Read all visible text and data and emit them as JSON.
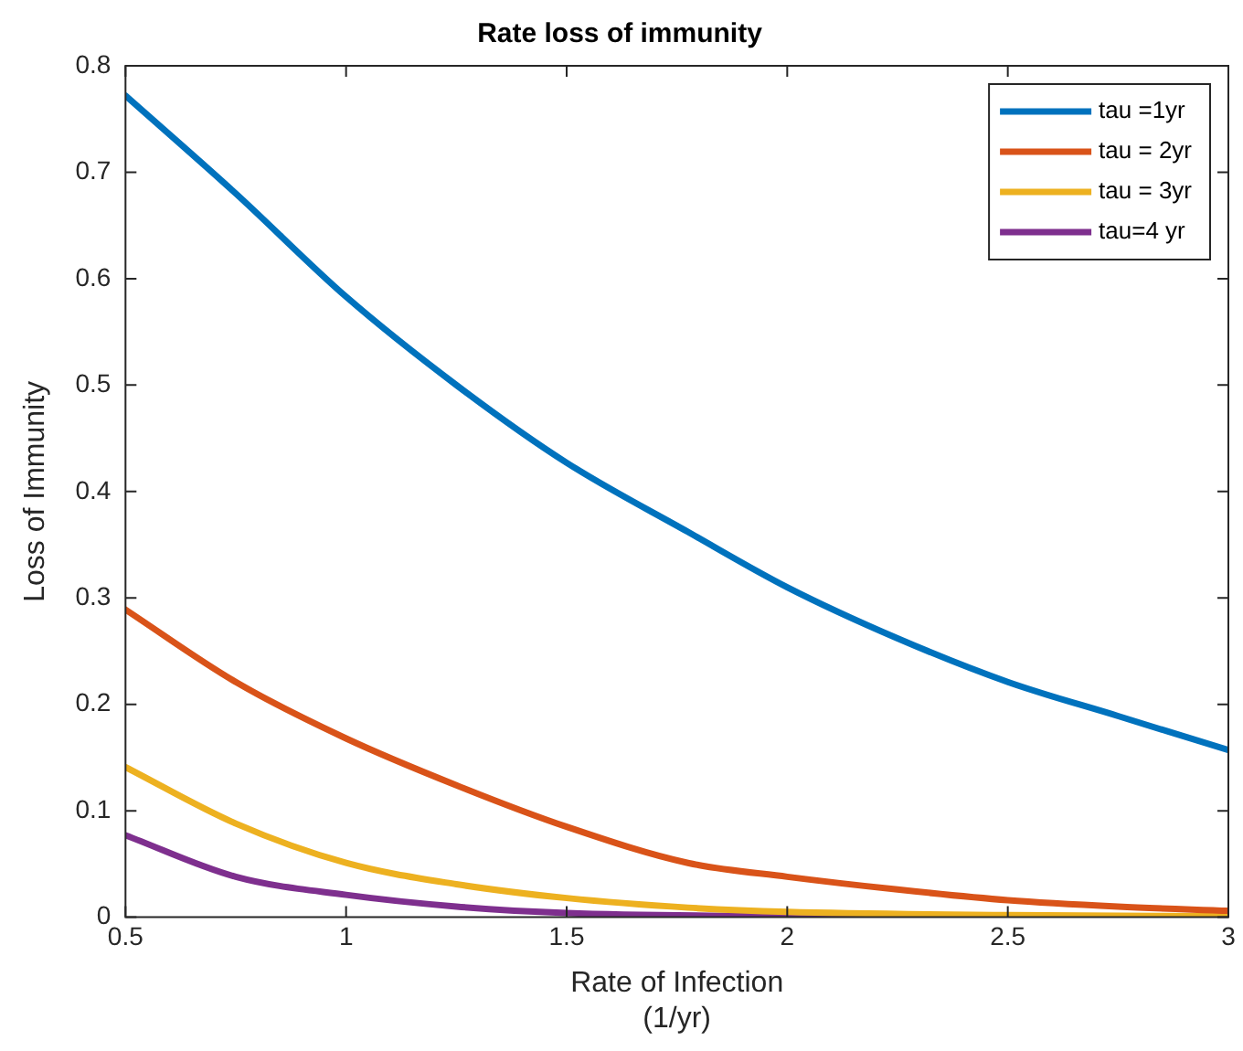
{
  "chart_data": {
    "type": "line",
    "title": "Rate loss of immunity",
    "xlabel": "Rate of Infection\n(1/yr)",
    "ylabel": "Loss of Immunity",
    "xlim": [
      0.5,
      3
    ],
    "xticks": [
      0.5,
      1,
      1.5,
      2,
      2.5,
      3
    ],
    "ylim": [
      0,
      0.8
    ],
    "yticks": [
      0,
      0.1,
      0.2,
      0.3,
      0.4,
      0.5,
      0.6,
      0.7,
      0.8
    ],
    "grid": false,
    "legend": "top right",
    "marker": "none",
    "line_style": "solid",
    "series": [
      {
        "name": "tau =1yr",
        "color": "#0072bd",
        "x": [
          0.5,
          0.75,
          1,
          1.25,
          1.5,
          1.775,
          2,
          2.25,
          2.5,
          2.75,
          3
        ],
        "values": [
          0.772,
          0.68,
          0.583,
          0.5,
          0.427,
          0.362,
          0.31,
          0.262,
          0.221,
          0.189,
          0.157
        ]
      },
      {
        "name": "tau = 2yr",
        "color": "#d95319",
        "x": [
          0.5,
          0.75,
          1,
          1.25,
          1.5,
          1.775,
          2,
          2.25,
          2.5,
          2.75,
          3
        ],
        "values": [
          0.289,
          0.221,
          0.168,
          0.124,
          0.085,
          0.051,
          0.038,
          0.026,
          0.016,
          0.01,
          0.006
        ]
      },
      {
        "name": "tau = 3yr",
        "color": "#edb120",
        "x": [
          0.5,
          0.75,
          1,
          1.25,
          1.5,
          1.775,
          2,
          2.5,
          3
        ],
        "values": [
          0.141,
          0.088,
          0.051,
          0.031,
          0.018,
          0.009,
          0.005,
          0.002,
          0.001
        ]
      },
      {
        "name": "tau=4 yr",
        "color": "#7e2f8e",
        "x": [
          0.5,
          0.75,
          1,
          1.25,
          1.5,
          2,
          3
        ],
        "values": [
          0.077,
          0.038,
          0.021,
          0.01,
          0.004,
          0.001,
          0
        ]
      }
    ]
  }
}
